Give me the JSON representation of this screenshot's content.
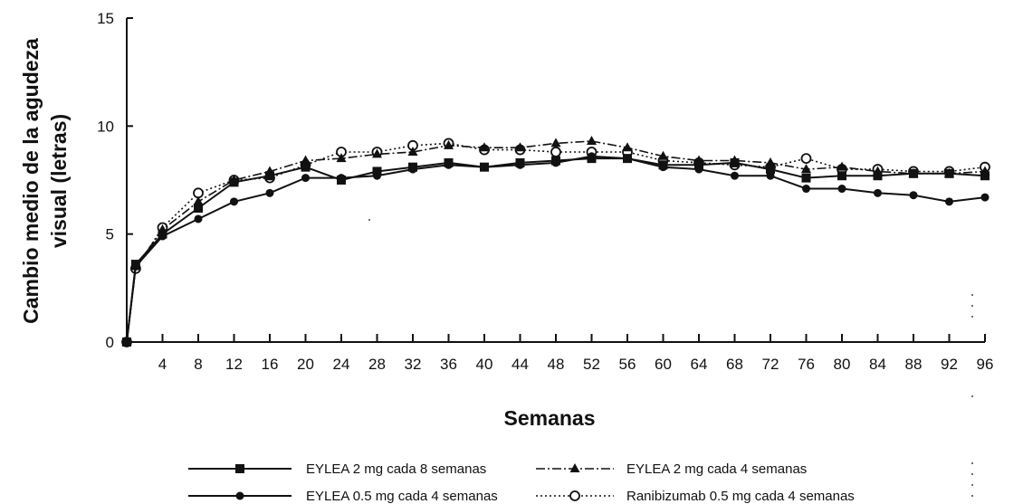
{
  "chart_data": {
    "type": "line",
    "xlabel": "Semanas",
    "ylabel": [
      "Cambio medio de la agudeza",
      "visual (letras)"
    ],
    "ylim": [
      0,
      15
    ],
    "yticks": [
      "0",
      "5",
      "10",
      "15"
    ],
    "xlim": [
      0,
      96
    ],
    "xticks": [
      "4",
      "8",
      "12",
      "16",
      "20",
      "24",
      "28",
      "32",
      "36",
      "40",
      "44",
      "48",
      "52",
      "56",
      "60",
      "64",
      "68",
      "72",
      "76",
      "80",
      "84",
      "88",
      "92",
      "96"
    ],
    "x": [
      0,
      1,
      4,
      8,
      12,
      16,
      20,
      24,
      28,
      32,
      36,
      40,
      44,
      48,
      52,
      56,
      60,
      64,
      68,
      72,
      76,
      80,
      84,
      88,
      92,
      96
    ],
    "grid": false,
    "legend_position": "bottom",
    "series": [
      {
        "name": "EYLEA 2 mg cada 8 semanas",
        "marker": "square",
        "line": "solid",
        "color": "#111111",
        "values": [
          0,
          3.6,
          5.0,
          6.2,
          7.4,
          7.7,
          8.1,
          7.5,
          7.9,
          8.1,
          8.3,
          8.1,
          8.3,
          8.4,
          8.5,
          8.5,
          8.2,
          8.2,
          8.3,
          8.0,
          7.6,
          7.7,
          7.7,
          7.8,
          7.8,
          7.7
        ]
      },
      {
        "name": "EYLEA 2 mg cada 4 semanas",
        "marker": "triangle",
        "line": "dash-dot",
        "color": "#111111",
        "values": [
          0,
          3.5,
          5.2,
          6.5,
          7.5,
          7.9,
          8.4,
          8.5,
          8.7,
          8.8,
          9.1,
          9.0,
          9.0,
          9.2,
          9.3,
          9.0,
          8.6,
          8.4,
          8.4,
          8.3,
          8.0,
          8.1,
          7.9,
          7.8,
          7.8,
          7.9
        ]
      },
      {
        "name": "EYLEA 0.5 mg cada 4 semanas",
        "marker": "circle-filled",
        "line": "solid",
        "color": "#111111",
        "values": [
          0,
          3.5,
          4.9,
          5.7,
          6.5,
          6.9,
          7.6,
          7.6,
          7.7,
          8.0,
          8.2,
          8.1,
          8.2,
          8.3,
          8.6,
          8.5,
          8.1,
          8.0,
          7.7,
          7.7,
          7.1,
          7.1,
          6.9,
          6.8,
          6.5,
          6.7
        ]
      },
      {
        "name": "Ranibizumab 0.5 mg cada 4 semanas",
        "marker": "circle-open",
        "line": "dotted",
        "color": "#111111",
        "values": [
          0,
          3.4,
          5.3,
          6.9,
          7.5,
          7.6,
          8.2,
          8.8,
          8.8,
          9.1,
          9.2,
          8.9,
          8.9,
          8.8,
          8.8,
          8.8,
          8.4,
          8.3,
          8.2,
          8.1,
          8.5,
          8.0,
          8.0,
          7.9,
          7.9,
          8.1
        ]
      }
    ]
  }
}
